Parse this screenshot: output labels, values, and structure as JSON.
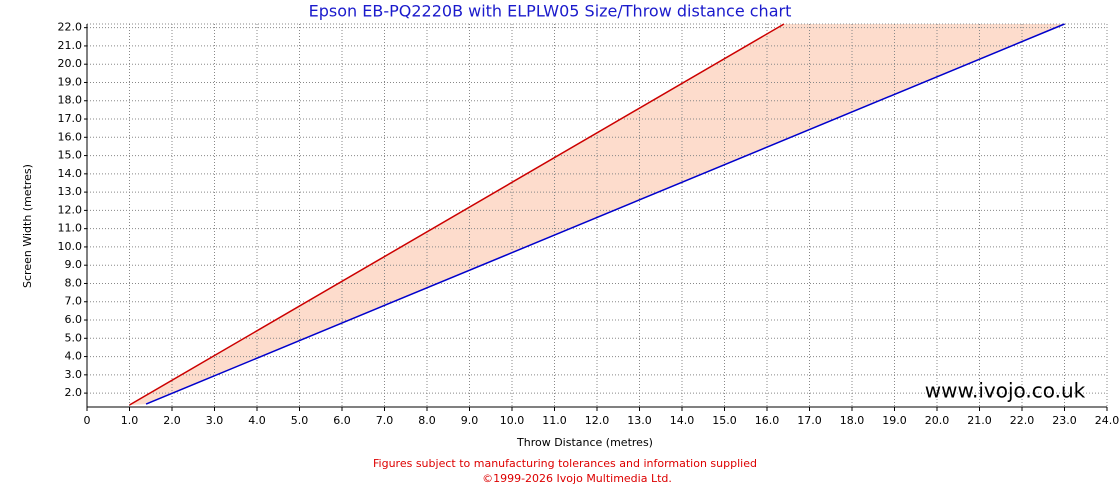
{
  "chart_data": {
    "type": "line",
    "title": "Epson EB-PQ2220B with ELPLW05 Size/Throw distance chart",
    "x_label": "Throw Distance (metres)",
    "y_label": "Screen Width (metres)",
    "watermark": "www.ivojo.co.uk",
    "footer": [
      "Figures subject to manufacturing tolerances and information supplied",
      "©1999-2026 Ivojo Multimedia Ltd."
    ],
    "grid": true,
    "fill_between": "#fddccc",
    "xlim": [
      0,
      24
    ],
    "ylim": [
      1.24,
      22.2
    ],
    "xticks": [
      0,
      {
        "value": 1,
        "label": "1.0"
      },
      {
        "value": 2,
        "label": "2.0"
      },
      {
        "value": 3,
        "label": "3.0"
      },
      {
        "value": 4,
        "label": "4.0"
      },
      {
        "value": 5,
        "label": "5.0"
      },
      {
        "value": 6,
        "label": "6.0"
      },
      {
        "value": 7,
        "label": "7.0"
      },
      {
        "value": 8,
        "label": "8.0"
      },
      {
        "value": 9,
        "label": "9.0"
      },
      {
        "value": 10,
        "label": "10.0"
      },
      {
        "value": 11,
        "label": "11.0"
      },
      {
        "value": 12,
        "label": "12.0"
      },
      {
        "value": 13,
        "label": "13.0"
      },
      {
        "value": 14,
        "label": "14.0"
      },
      {
        "value": 15,
        "label": "15.0"
      },
      {
        "value": 16,
        "label": "16.0"
      },
      {
        "value": 17,
        "label": "17.0"
      },
      {
        "value": 18,
        "label": "18.0"
      },
      {
        "value": 19,
        "label": "19.0"
      },
      {
        "value": 20,
        "label": "20.0"
      },
      {
        "value": 21,
        "label": "21.0"
      },
      {
        "value": 22,
        "label": "22.0"
      },
      {
        "value": 23,
        "label": "23.0"
      },
      {
        "value": 24,
        "label": "24.0"
      }
    ],
    "yticks": [
      {
        "value": 2,
        "label": "2.0"
      },
      {
        "value": 3,
        "label": "3.0"
      },
      {
        "value": 4,
        "label": "4.0"
      },
      {
        "value": 5,
        "label": "5.0"
      },
      {
        "value": 6,
        "label": "6.0"
      },
      {
        "value": 7,
        "label": "7.0"
      },
      {
        "value": 8,
        "label": "8.0"
      },
      {
        "value": 9,
        "label": "9.0"
      },
      {
        "value": 10,
        "label": "10.0"
      },
      {
        "value": 11,
        "label": "11.0"
      },
      {
        "value": 12,
        "label": "12.0"
      },
      {
        "value": 13,
        "label": "13.0"
      },
      {
        "value": 14,
        "label": "14.0"
      },
      {
        "value": 15,
        "label": "15.0"
      },
      {
        "value": 16,
        "label": "16.0"
      },
      {
        "value": 17,
        "label": "17.0"
      },
      {
        "value": 18,
        "label": "18.0"
      },
      {
        "value": 19,
        "label": "19.0"
      },
      {
        "value": 20,
        "label": "20.0"
      },
      {
        "value": 21,
        "label": "21.0"
      },
      {
        "value": 22,
        "label": "22.0"
      }
    ],
    "series": [
      {
        "color": "#cc0000",
        "x": [
          1.0,
          16.4
        ],
        "values": [
          1.35,
          22.2
        ]
      },
      {
        "color": "#0000cc",
        "x": [
          1.39,
          23.0
        ],
        "values": [
          1.4,
          22.2
        ]
      }
    ]
  }
}
